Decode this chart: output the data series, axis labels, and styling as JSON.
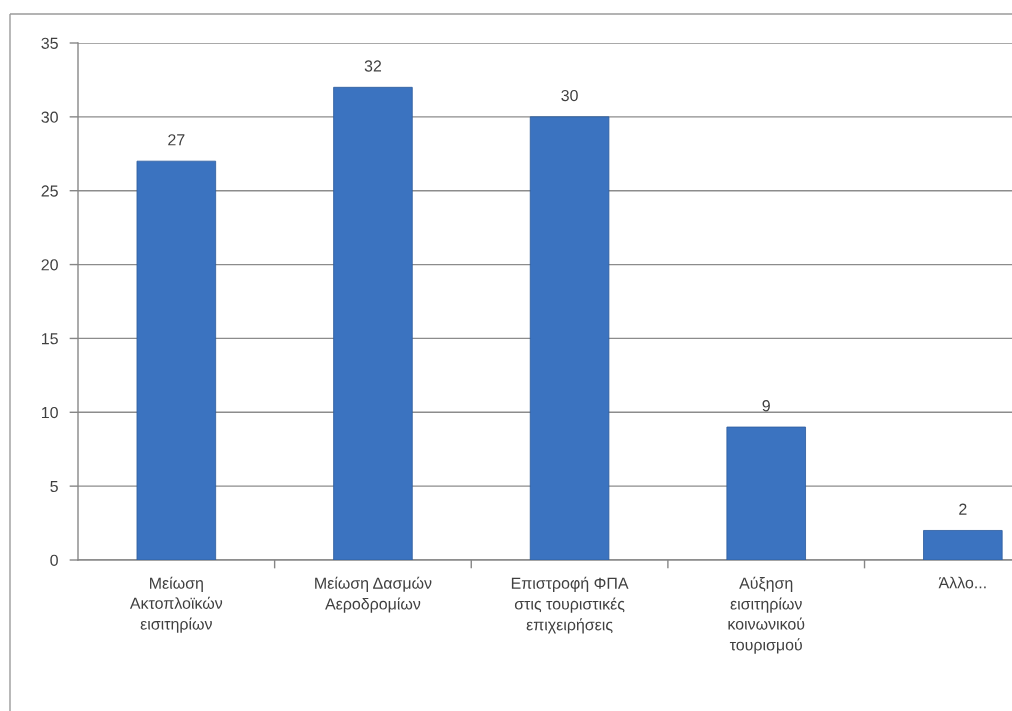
{
  "chart_data": {
    "type": "bar",
    "categories": [
      "Μείωση\nΑκτοπλοϊκών\nεισιτηρίων",
      "Μείωση Δασμών\nΑεροδρομίων",
      "Επιστροφή ΦΠΑ\nστις τουριστικές\nεπιχειρήσεις",
      "Αύξηση\nεισιτηρίων\nκοινωνικού\nτουρισμού",
      "Άλλο..."
    ],
    "values": [
      27,
      32,
      30,
      9,
      2
    ],
    "color": "#3b73c0",
    "ylim": [
      0,
      35
    ],
    "yticks": [
      0,
      5,
      10,
      15,
      20,
      25,
      30,
      35
    ],
    "grid": "y",
    "data_labels": true,
    "legend": false
  }
}
